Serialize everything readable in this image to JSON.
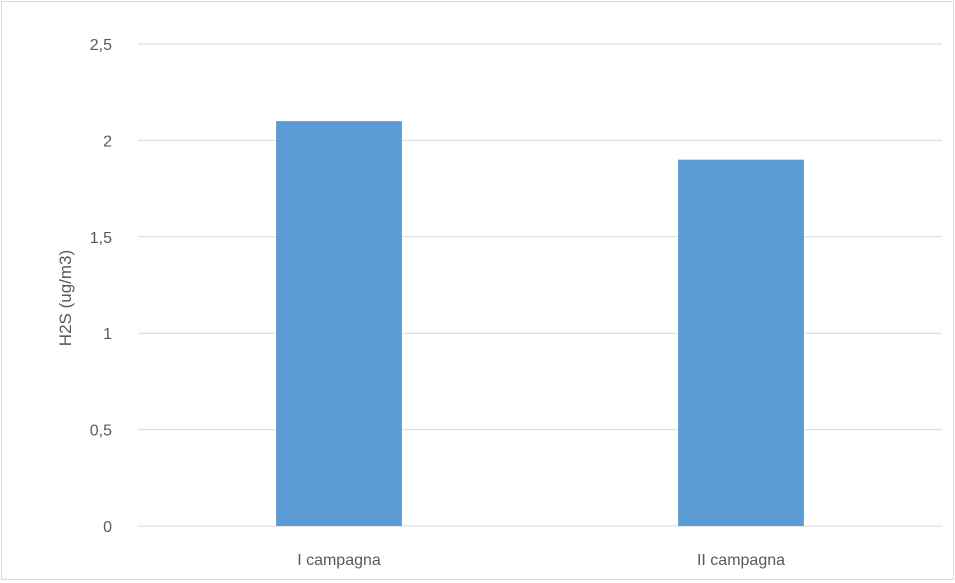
{
  "chart_data": {
    "type": "bar",
    "categories": [
      "I campagna",
      "II campagna"
    ],
    "values": [
      2.1,
      1.9
    ],
    "title": "",
    "xlabel": "",
    "ylabel": "H2S (ug/m3)",
    "ylim": [
      0,
      2.5
    ],
    "yticks": [
      0,
      0.5,
      1,
      1.5,
      2,
      2.5
    ],
    "ytick_labels": [
      "0",
      "0,5",
      "1",
      "1,5",
      "2",
      "2,5"
    ],
    "grid": true,
    "legend": "none",
    "bar_color": "#5b9bd5",
    "grid_color": "#d9d9d9",
    "text_color": "#595959"
  }
}
